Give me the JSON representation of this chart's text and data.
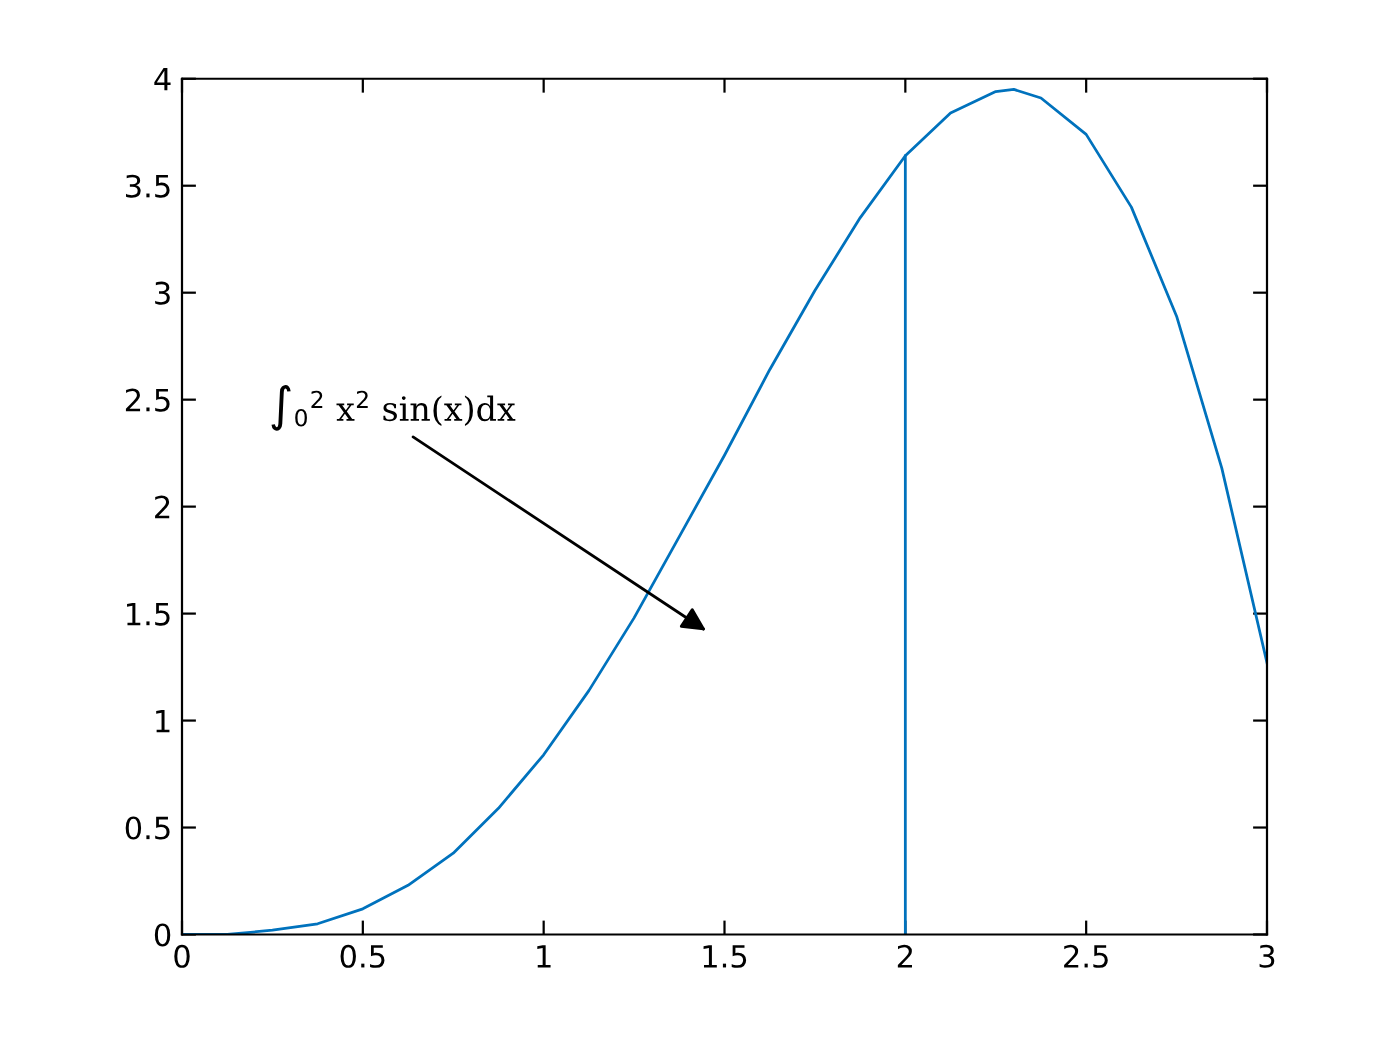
{
  "chart_data": {
    "type": "line",
    "series": [
      {
        "color": "#0072bd",
        "x": [
          0,
          0.125,
          0.25,
          0.375,
          0.5,
          0.625,
          0.75,
          0.875,
          1,
          1.125,
          1.25,
          1.375,
          1.5,
          1.625,
          1.75,
          1.875,
          2,
          2.125,
          2.25,
          2.3,
          2.375,
          2.5,
          2.625,
          2.75,
          2.875,
          3
        ],
        "values": [
          0,
          0,
          0.02,
          0.05,
          0.12,
          0.23,
          0.38,
          0.59,
          0.84,
          1.14,
          1.48,
          1.86,
          2.24,
          2.64,
          3.01,
          3.35,
          3.64,
          3.84,
          3.94,
          3.95,
          3.91,
          3.74,
          3.4,
          2.89,
          2.18,
          1.27
        ]
      },
      {
        "color": "#0072bd",
        "x": [
          2,
          2
        ],
        "values": [
          0,
          3.64
        ]
      }
    ],
    "xlim": [
      0,
      3
    ],
    "xticks": [
      0,
      0.5,
      1,
      1.5,
      2,
      2.5,
      3
    ],
    "ylim": [
      0,
      4
    ],
    "yticks": [
      0,
      0.5,
      1,
      1.5,
      2,
      2.5,
      3,
      3.5,
      4
    ],
    "grid": false,
    "marker": "none",
    "line_style": "solid",
    "annotations": [
      "∫$_{0}$$^{2}$ x$^{2}$ sin(x)dx"
    ]
  }
}
